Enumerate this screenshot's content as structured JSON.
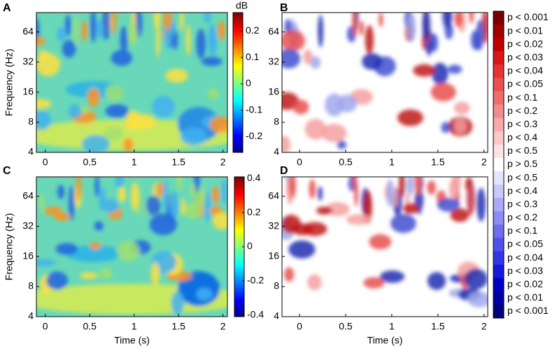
{
  "chart_data": [
    {
      "type": "heatmap",
      "panel": "A",
      "ylabel": "Frequency (Hz)",
      "log_y": true,
      "xlim": [
        -0.1,
        2.05
      ],
      "xticks": [
        0,
        0.5,
        1,
        1.5,
        2
      ],
      "ylim": [
        4,
        100
      ],
      "yticks": [
        4,
        8,
        16,
        32,
        64
      ],
      "colorbar": {
        "title": "dB",
        "lim": [
          -0.26,
          0.27
        ],
        "ticks": [
          -0.2,
          -0.1,
          0,
          0.1,
          0.2
        ]
      }
    },
    {
      "type": "heatmap",
      "panel": "B",
      "log_y": true,
      "xlim": [
        -0.19,
        2.04
      ],
      "xticks": [
        0,
        0.5,
        1,
        1.5,
        2
      ],
      "ylim": [
        4,
        100
      ],
      "yticks": [
        4,
        8,
        16,
        32,
        64
      ]
    },
    {
      "type": "heatmap",
      "panel": "C",
      "ylabel": "Frequency (Hz)",
      "xlabel": "Time (s)",
      "log_y": true,
      "xlim": [
        -0.1,
        2.05
      ],
      "xticks": [
        0,
        0.5,
        1,
        1.5,
        2
      ],
      "ylim": [
        4,
        100
      ],
      "yticks": [
        4,
        8,
        16,
        32,
        64
      ],
      "colorbar": {
        "lim": [
          -0.41,
          0.41
        ],
        "ticks": [
          -0.4,
          -0.2,
          0,
          0.2,
          0.4
        ]
      }
    },
    {
      "type": "heatmap",
      "panel": "D",
      "xlabel": "Time (s)",
      "log_y": true,
      "xlim": [
        -0.19,
        2.04
      ],
      "xticks": [
        0,
        0.5,
        1,
        1.5,
        2
      ],
      "ylim": [
        4,
        100
      ],
      "yticks": [
        4,
        8,
        16,
        32,
        64
      ]
    }
  ],
  "legend": {
    "labels": [
      "p < 0.001",
      "p < 0.01",
      "p < 0.02",
      "p < 0.03",
      "p < 0.04",
      "p < 0.05",
      "p < 0.1",
      "p < 0.2",
      "p < 0.3",
      "p < 0.4",
      "p < 0.5",
      "p > 0.5",
      "p < 0.5",
      "p < 0.4",
      "p < 0.3",
      "p < 0.2",
      "p < 0.1",
      "p < 0.05",
      "p < 0.04",
      "p < 0.03",
      "p < 0.02",
      "p < 0.01",
      "p < 0.001"
    ],
    "colors": [
      "#7a0000",
      "#a00000",
      "#c00000",
      "#d81818",
      "#e43434",
      "#ea5050",
      "#ee6e6e",
      "#f28c8c",
      "#f6aaaa",
      "#f9c8c8",
      "#fce4e4",
      "#ffffff",
      "#e4e4fc",
      "#c8c8f9",
      "#aaaaf6",
      "#8c8cf2",
      "#6e6eee",
      "#5050ea",
      "#3434e4",
      "#1818d8",
      "#0000c0",
      "#0000a0",
      "#00007a"
    ]
  }
}
